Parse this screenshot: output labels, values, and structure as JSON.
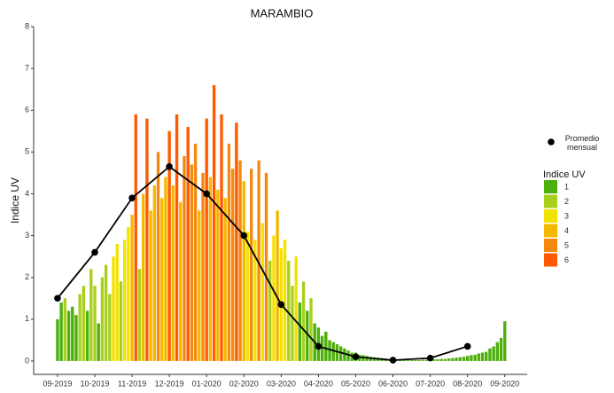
{
  "chart_data": {
    "type": "bar",
    "title": "MARAMBIO",
    "ylabel": "Indice UV",
    "xlim": [
      -0.64,
      12.6
    ],
    "ylim": [
      -0.32,
      8
    ],
    "xticks": [
      {
        "value": 0,
        "label": "09-2019"
      },
      {
        "value": 1,
        "label": "10-2019"
      },
      {
        "value": 2,
        "label": "11-2019"
      },
      {
        "value": 3,
        "label": "12-2019"
      },
      {
        "value": 4,
        "label": "01-2020"
      },
      {
        "value": 5,
        "label": "02-2020"
      },
      {
        "value": 6,
        "label": "03-2020"
      },
      {
        "value": 7,
        "label": "04-2020"
      },
      {
        "value": 8,
        "label": "05-2020"
      },
      {
        "value": 9,
        "label": "06-2020"
      },
      {
        "value": 10,
        "label": "07-2020"
      },
      {
        "value": 11,
        "label": "08-2020"
      },
      {
        "value": 12,
        "label": "09-2020"
      }
    ],
    "yticks": [
      0,
      1,
      2,
      3,
      4,
      5,
      6,
      7,
      8
    ],
    "bars": {
      "x": [
        0,
        0.1,
        0.2,
        0.3,
        0.4,
        0.5,
        0.6,
        0.7,
        0.8,
        0.9,
        1,
        1.1,
        1.2,
        1.3,
        1.4,
        1.5,
        1.6,
        1.7,
        1.8,
        1.9,
        2,
        2.1,
        2.2,
        2.3,
        2.4,
        2.5,
        2.6,
        2.7,
        2.8,
        2.9,
        3,
        3.1,
        3.2,
        3.3,
        3.4,
        3.5,
        3.6,
        3.7,
        3.8,
        3.9,
        4,
        4.1,
        4.2,
        4.3,
        4.4,
        4.5,
        4.6,
        4.7,
        4.8,
        4.9,
        5,
        5.1,
        5.2,
        5.3,
        5.4,
        5.5,
        5.6,
        5.7,
        5.8,
        5.9,
        6,
        6.1,
        6.2,
        6.3,
        6.4,
        6.5,
        6.6,
        6.7,
        6.8,
        6.9,
        7,
        7.1,
        7.2,
        7.3,
        7.4,
        7.5,
        7.6,
        7.7,
        7.8,
        7.9,
        8,
        8.1,
        8.2,
        8.3,
        8.4,
        8.5,
        8.6,
        8.7,
        8.8,
        8.9,
        9,
        9.1,
        9.2,
        9.3,
        9.4,
        9.5,
        9.6,
        9.7,
        9.8,
        9.9,
        10,
        10.1,
        10.2,
        10.3,
        10.4,
        10.5,
        10.6,
        10.7,
        10.8,
        10.9,
        11,
        11.1,
        11.2,
        11.3,
        11.4,
        11.5,
        11.6,
        11.7,
        11.8,
        11.9,
        12
      ],
      "values": [
        1.0,
        1.4,
        1.5,
        1.2,
        1.3,
        1.1,
        1.6,
        1.8,
        1.2,
        2.2,
        1.8,
        0.9,
        2.0,
        2.3,
        1.6,
        2.5,
        2.8,
        1.9,
        2.9,
        3.2,
        3.5,
        5.9,
        2.2,
        4.0,
        5.8,
        3.6,
        4.2,
        5.0,
        3.9,
        4.4,
        5.5,
        4.2,
        5.9,
        3.8,
        4.9,
        5.6,
        4.7,
        5.2,
        3.6,
        4.5,
        5.8,
        4.4,
        6.6,
        4.1,
        5.9,
        3.9,
        5.2,
        4.6,
        5.7,
        4.8,
        4.3,
        3.1,
        4.6,
        2.9,
        4.8,
        3.3,
        4.5,
        2.4,
        3.0,
        3.6,
        2.7,
        2.9,
        2.4,
        1.8,
        2.5,
        1.4,
        1.9,
        1.2,
        1.5,
        0.9,
        0.8,
        0.6,
        0.7,
        0.5,
        0.45,
        0.4,
        0.35,
        0.3,
        0.25,
        0.2,
        0.2,
        0.15,
        0.14,
        0.12,
        0.1,
        0.09,
        0.08,
        0.07,
        0.06,
        0.05,
        0.04,
        0.03,
        0.03,
        0.02,
        0.02,
        0.02,
        0.02,
        0.02,
        0.03,
        0.03,
        0.03,
        0.04,
        0.04,
        0.05,
        0.05,
        0.06,
        0.07,
        0.08,
        0.09,
        0.1,
        0.12,
        0.14,
        0.15,
        0.18,
        0.2,
        0.22,
        0.3,
        0.35,
        0.45,
        0.55,
        0.95
      ]
    },
    "line": {
      "name": "Promedio mensual",
      "color": "#000000",
      "x": [
        0,
        1,
        2,
        3,
        4,
        5,
        6,
        7,
        8,
        9,
        10,
        11
      ],
      "values": [
        1.5,
        2.6,
        3.9,
        4.65,
        4.0,
        3.0,
        1.35,
        0.35,
        0.1,
        0.02,
        0.07,
        0.35
      ]
    },
    "legend": {
      "title": "Indice UV",
      "categories": [
        "1",
        "2",
        "3",
        "4",
        "5",
        "6"
      ],
      "colors": [
        "#4daf0a",
        "#a8cf1c",
        "#f2e200",
        "#f5b800",
        "#f5890f",
        "#ff5a00"
      ]
    }
  }
}
